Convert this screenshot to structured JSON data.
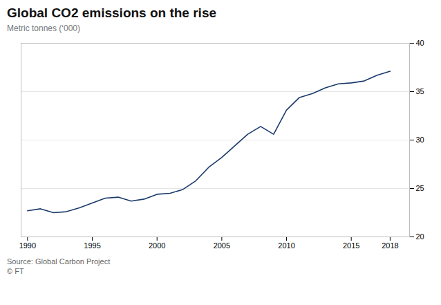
{
  "chart_data": {
    "type": "line",
    "title": "Global CO2 emissions on the rise",
    "subtitle": "Metric tonnes (‘000)",
    "caption": [
      "Source: Global Carbon Project",
      "© FT"
    ],
    "color": "#1a3a6b",
    "x": [
      1990,
      1991,
      1992,
      1993,
      1994,
      1995,
      1996,
      1997,
      1998,
      1999,
      2000,
      2001,
      2002,
      2003,
      2004,
      2005,
      2006,
      2007,
      2008,
      2009,
      2010,
      2011,
      2012,
      2013,
      2014,
      2015,
      2016,
      2017,
      2018
    ],
    "values": [
      22.7,
      22.9,
      22.5,
      22.6,
      23.0,
      23.5,
      24.0,
      24.1,
      23.7,
      23.9,
      24.4,
      24.5,
      24.9,
      25.8,
      27.2,
      28.2,
      29.4,
      30.6,
      31.4,
      30.6,
      33.1,
      34.4,
      34.8,
      35.4,
      35.8,
      35.9,
      36.1,
      36.7,
      37.1
    ],
    "xlim": [
      1989.5,
      2019.5
    ],
    "xticks": [
      1990,
      1995,
      2000,
      2005,
      2010,
      2015,
      2018
    ],
    "ylim": [
      20,
      40
    ],
    "yticks": [
      20,
      25,
      30,
      35,
      40
    ],
    "grid": "y"
  }
}
